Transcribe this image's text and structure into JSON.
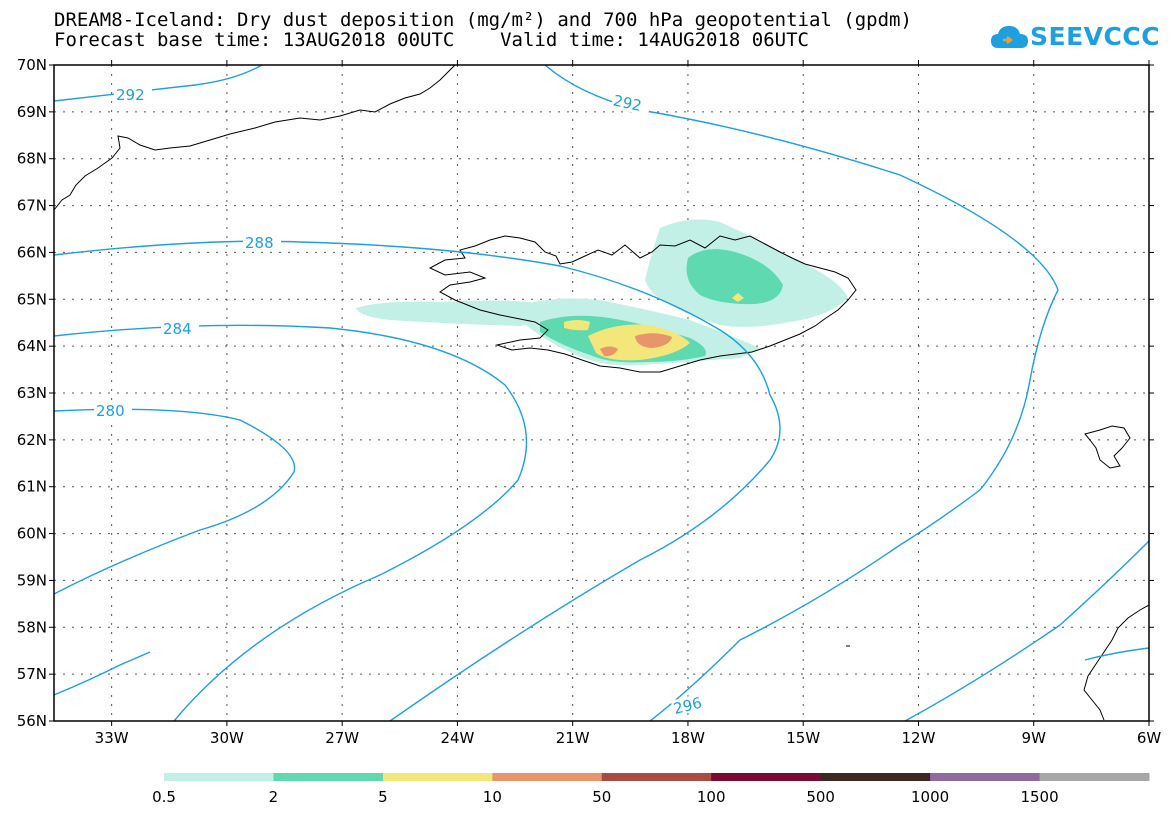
{
  "title_line1": "DREAM8-Iceland: Dry dust deposition (mg/m²) and 700 hPa geopotential (gpdm)",
  "title_line2": "Forecast base time: 13AUG2018 00UTC    Valid time: 14AUG2018 06UTC",
  "logo_text": "SEEVCCC",
  "logo_icon": "cloud-icon",
  "colors": {
    "contour": "#1d9fe0",
    "coast": "#000000",
    "frame": "#000000"
  },
  "lat_labels": [
    "70N",
    "69N",
    "68N",
    "67N",
    "66N",
    "65N",
    "64N",
    "63N",
    "62N",
    "61N",
    "60N",
    "59N",
    "58N",
    "57N",
    "56N"
  ],
  "lon_labels": [
    "33W",
    "30W",
    "27W",
    "24W",
    "21W",
    "18W",
    "15W",
    "12W",
    "9W",
    "6W"
  ],
  "contour_labels": [
    "292",
    "292",
    "288",
    "284",
    "280",
    "296"
  ],
  "legend": {
    "labels": [
      "0.5",
      "2",
      "5",
      "10",
      "50",
      "100",
      "500",
      "1000",
      "1500"
    ],
    "colors": [
      "#c3f0e6",
      "#5ed9b0",
      "#f3e67a",
      "#e9956b",
      "#a84b43",
      "#7a0a30",
      "#3c2a20",
      "#8e6a9d",
      "#a7a7a7"
    ]
  }
}
